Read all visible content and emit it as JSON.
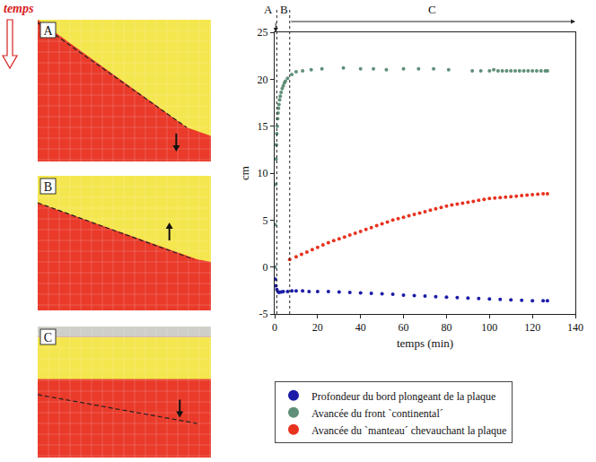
{
  "chart_data": {
    "type": "scatter",
    "xlabel": "temps (min)",
    "ylabel": "cm",
    "xlim": [
      0,
      140
    ],
    "xticks": [
      0,
      20,
      40,
      60,
      80,
      100,
      120,
      140
    ],
    "ylim": [
      -5,
      25
    ],
    "yticks": [
      -5,
      0,
      5,
      10,
      15,
      20,
      25
    ],
    "grid": false,
    "legend": "bottom",
    "phases": [
      {
        "label": "A",
        "start": 0,
        "end": 1
      },
      {
        "label": "B",
        "start": 1,
        "end": 7
      },
      {
        "label": "C",
        "start": 7,
        "end": 140
      }
    ],
    "series": [
      {
        "name": "Profondeur du bord plongeant de la plaque",
        "color": "#1c1ca8",
        "marker": "circle",
        "x": [
          0,
          0.3,
          0.6,
          1,
          1.5,
          2,
          3,
          4,
          6,
          8,
          10,
          13,
          16,
          20,
          25,
          30,
          35,
          40,
          45,
          50,
          55,
          60,
          65,
          70,
          75,
          80,
          85,
          90,
          95,
          100,
          105,
          110,
          115,
          120,
          125,
          127
        ],
        "values": [
          0,
          -1.3,
          -2.0,
          -2.4,
          -2.6,
          -2.7,
          -2.65,
          -2.6,
          -2.6,
          -2.55,
          -2.55,
          -2.55,
          -2.6,
          -2.6,
          -2.6,
          -2.65,
          -2.7,
          -2.75,
          -2.8,
          -2.85,
          -2.9,
          -3.0,
          -3.05,
          -3.1,
          -3.15,
          -3.2,
          -3.25,
          -3.3,
          -3.35,
          -3.4,
          -3.45,
          -3.5,
          -3.55,
          -3.6,
          -3.6,
          -3.6
        ]
      },
      {
        "name": "Avancée du front `continental´",
        "color": "#5f8f78",
        "marker": "circle",
        "x": [
          0,
          0.2,
          0.4,
          0.6,
          0.8,
          1.0,
          1.2,
          1.4,
          1.6,
          1.8,
          2.0,
          2.3,
          2.6,
          3.0,
          3.5,
          4.0,
          4.5,
          5.0,
          6,
          8,
          10,
          13,
          17,
          22,
          32,
          40,
          46,
          52,
          60,
          67,
          74,
          81,
          92,
          96,
          100,
          102,
          104,
          106,
          108,
          110,
          112,
          114,
          116,
          118,
          120,
          122,
          124,
          126,
          127
        ],
        "values": [
          0,
          4.5,
          8.8,
          11.5,
          13.0,
          14.2,
          15.0,
          15.8,
          16.4,
          16.9,
          17.3,
          17.8,
          18.2,
          18.6,
          19.0,
          19.3,
          19.6,
          19.8,
          20.1,
          20.5,
          20.8,
          20.9,
          21.0,
          21.1,
          21.2,
          21.1,
          21.1,
          21.0,
          21.1,
          21.1,
          21.1,
          21.0,
          20.9,
          20.9,
          20.9,
          21.0,
          20.9,
          20.9,
          20.9,
          20.9,
          20.9,
          20.9,
          20.9,
          20.9,
          20.9,
          20.9,
          20.9,
          20.9,
          20.9
        ]
      },
      {
        "name": "Avancée du `manteau´ chevauchant la plaque",
        "color": "#e8321e",
        "marker": "circle",
        "x": [
          7,
          10,
          12.5,
          15,
          17.5,
          20,
          22.5,
          25,
          27.5,
          30,
          32.5,
          35,
          37.5,
          40,
          42.5,
          45,
          47.5,
          50,
          52.5,
          55,
          57.5,
          60,
          62.5,
          65,
          67.5,
          70,
          72.5,
          75,
          77.5,
          80,
          82.5,
          85,
          87.5,
          90,
          92.5,
          95,
          97.5,
          100,
          102.5,
          105,
          107.5,
          110,
          112.5,
          115,
          117.5,
          120,
          122.5,
          125,
          127
        ],
        "values": [
          0.8,
          1.1,
          1.35,
          1.6,
          1.85,
          2.1,
          2.35,
          2.6,
          2.8,
          3.0,
          3.2,
          3.4,
          3.6,
          3.8,
          4.0,
          4.2,
          4.4,
          4.6,
          4.8,
          5.0,
          5.15,
          5.3,
          5.45,
          5.6,
          5.75,
          5.9,
          6.05,
          6.2,
          6.35,
          6.5,
          6.6,
          6.7,
          6.8,
          6.9,
          7.0,
          7.1,
          7.2,
          7.3,
          7.35,
          7.4,
          7.45,
          7.5,
          7.55,
          7.6,
          7.65,
          7.7,
          7.75,
          7.8,
          7.8
        ]
      }
    ]
  },
  "photos": {
    "time_label": "temps",
    "panels": [
      {
        "label": "A",
        "arrow": "down"
      },
      {
        "label": "B",
        "arrow": "up"
      },
      {
        "label": "C",
        "arrow": "down"
      }
    ]
  }
}
